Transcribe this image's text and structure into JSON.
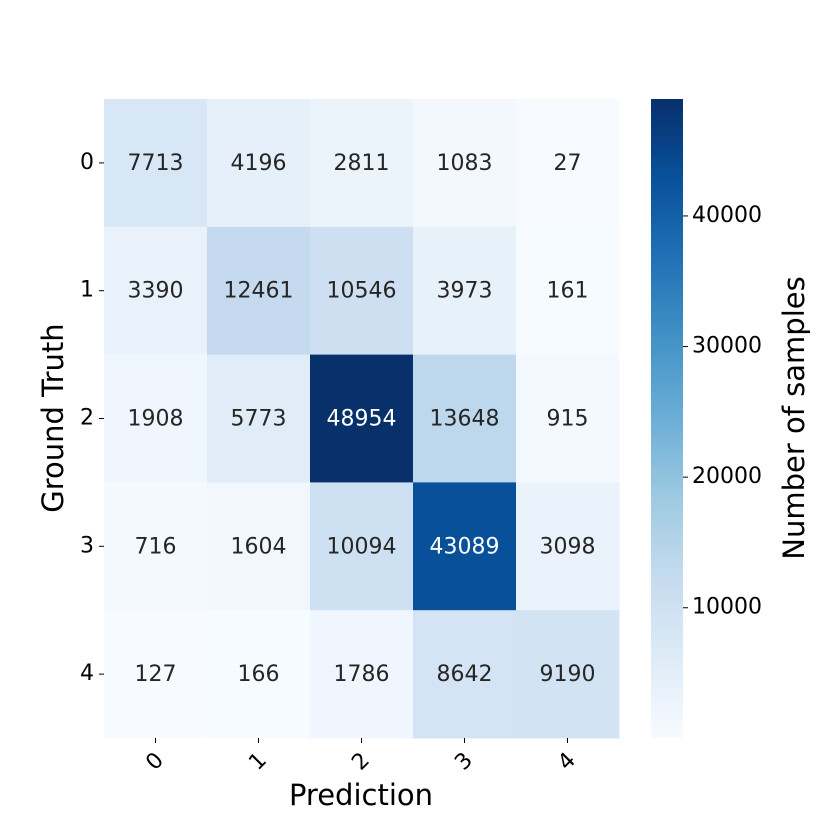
{
  "chart_data": {
    "type": "heatmap",
    "xlabel": "Prediction",
    "ylabel": "Ground Truth",
    "x_categories": [
      "0",
      "1",
      "2",
      "3",
      "4"
    ],
    "y_categories": [
      "0",
      "1",
      "2",
      "3",
      "4"
    ],
    "values": [
      [
        7713,
        4196,
        2811,
        1083,
        27
      ],
      [
        3390,
        12461,
        10546,
        3973,
        161
      ],
      [
        1908,
        5773,
        48954,
        13648,
        915
      ],
      [
        716,
        1604,
        10094,
        43089,
        3098
      ],
      [
        127,
        166,
        1786,
        8642,
        9190
      ]
    ],
    "colorbar": {
      "label": "Number of samples",
      "lim": [
        27,
        48954
      ],
      "ticks": [
        10000,
        20000,
        30000,
        40000
      ]
    },
    "colormap": [
      "#f7fbff",
      "#deebf7",
      "#c6dbef",
      "#9ecae1",
      "#6baed6",
      "#4292c6",
      "#2171b5",
      "#08519c",
      "#08306b"
    ]
  }
}
